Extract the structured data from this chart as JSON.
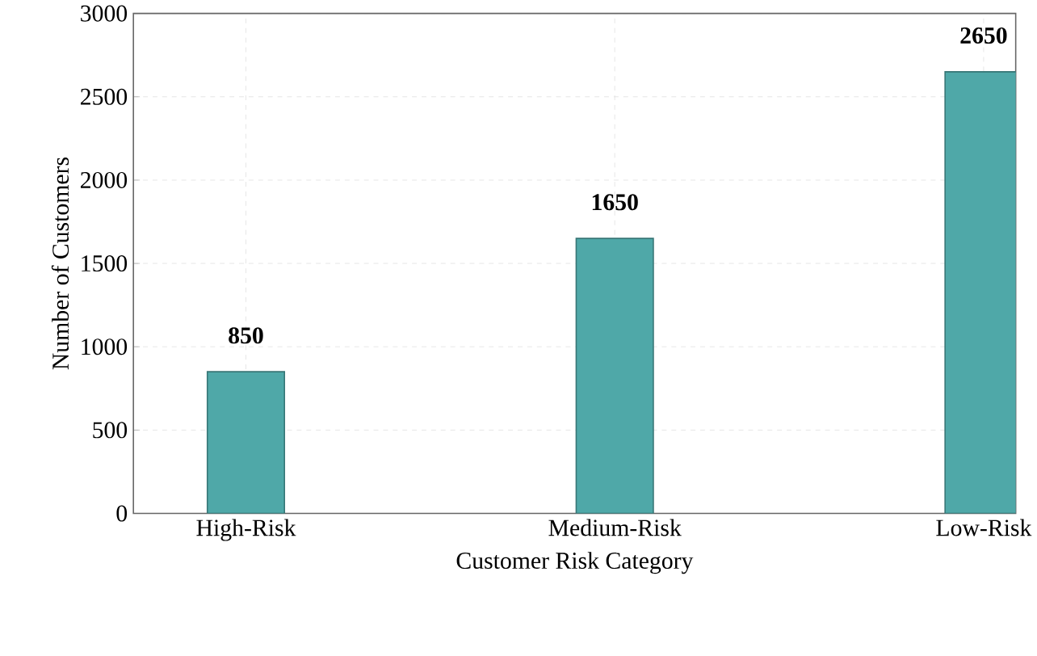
{
  "chart_data": {
    "type": "bar",
    "xlabel": "Customer Risk Category",
    "ylabel": "Number of Customers",
    "categories": [
      "High-Risk",
      "Medium-Risk",
      "Low-Risk"
    ],
    "values": [
      850,
      1650,
      2650
    ],
    "color": "#4fa8a8",
    "ylim": [
      0,
      3000
    ],
    "yticks": [
      0,
      500,
      1000,
      1500,
      2000,
      2500,
      3000
    ],
    "grid": true,
    "data_labels": true
  }
}
